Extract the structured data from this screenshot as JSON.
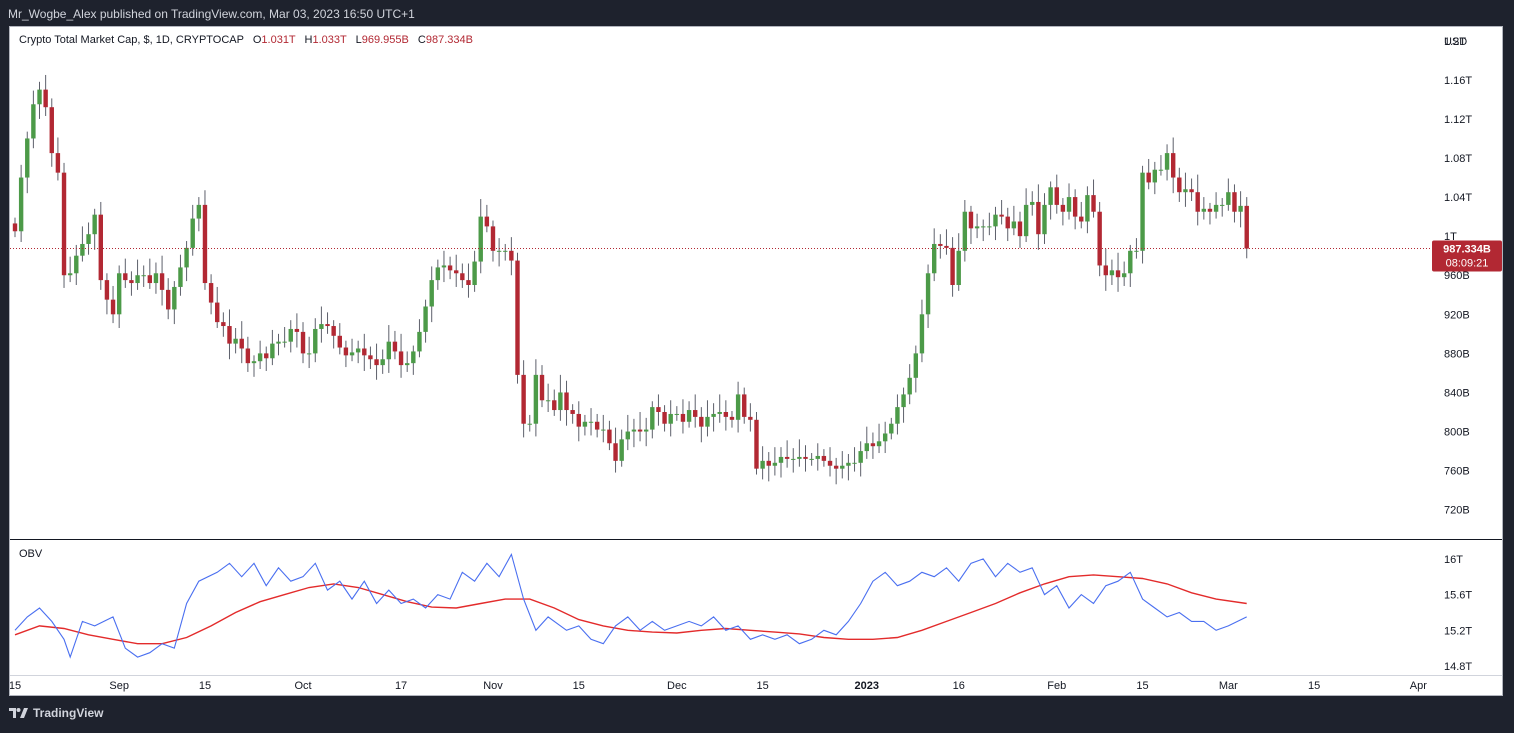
{
  "header": {
    "publisher_line": "Mr_Wogbe_Alex published on TradingView.com, Mar 03, 2023 16:50 UTC+1"
  },
  "legend": {
    "symbol": "Crypto Total Market Cap, $, 1D, CRYPTOCAP",
    "open_key": "O",
    "open": "1.031T",
    "high_key": "H",
    "high": "1.033T",
    "low_key": "L",
    "low": "969.955B",
    "close_key": "C",
    "close": "987.334B"
  },
  "price_tag": {
    "price": "987.334B",
    "countdown": "08:09:21",
    "color": "#b22833"
  },
  "footer": {
    "brand": "TradingView",
    "logo_icon": "tradingview-logo-icon"
  },
  "colors": {
    "up": "#4c9a48",
    "down": "#b22833",
    "obv_line": "#4a6ff0",
    "obv_ma": "#e32b2b"
  },
  "chart_data": [
    {
      "type": "candlestick",
      "title": "Crypto Total Market Cap, $, 1D, CRYPTOCAP",
      "currency_label": "USD",
      "ylim": [
        690,
        1210
      ],
      "y_ticks": [
        {
          "v": 1200,
          "label": "1.2T"
        },
        {
          "v": 1160,
          "label": "1.16T"
        },
        {
          "v": 1120,
          "label": "1.12T"
        },
        {
          "v": 1080,
          "label": "1.08T"
        },
        {
          "v": 1040,
          "label": "1.04T"
        },
        {
          "v": 1000,
          "label": "1T"
        },
        {
          "v": 960,
          "label": "960B"
        },
        {
          "v": 920,
          "label": "920B"
        },
        {
          "v": 880,
          "label": "880B"
        },
        {
          "v": 840,
          "label": "840B"
        },
        {
          "v": 800,
          "label": "800B"
        },
        {
          "v": 760,
          "label": "760B"
        },
        {
          "v": 720,
          "label": "720B"
        }
      ],
      "x_ticks": [
        {
          "day": 0,
          "label": "15",
          "bold": false
        },
        {
          "day": 17,
          "label": "Sep",
          "bold": false
        },
        {
          "day": 31,
          "label": "15",
          "bold": false
        },
        {
          "day": 47,
          "label": "Oct",
          "bold": false
        },
        {
          "day": 63,
          "label": "17",
          "bold": false
        },
        {
          "day": 78,
          "label": "Nov",
          "bold": false
        },
        {
          "day": 92,
          "label": "15",
          "bold": false
        },
        {
          "day": 108,
          "label": "Dec",
          "bold": false
        },
        {
          "day": 122,
          "label": "15",
          "bold": false
        },
        {
          "day": 139,
          "label": "2023",
          "bold": true
        },
        {
          "day": 154,
          "label": "16",
          "bold": false
        },
        {
          "day": 170,
          "label": "Feb",
          "bold": false
        },
        {
          "day": 184,
          "label": "15",
          "bold": false
        },
        {
          "day": 198,
          "label": "Mar",
          "bold": false
        },
        {
          "day": 212,
          "label": "15",
          "bold": false
        },
        {
          "day": 229,
          "label": "Apr",
          "bold": false
        }
      ],
      "last_price": 987.334,
      "closes": [
        1005,
        1060,
        1100,
        1135,
        1150,
        1132,
        1085,
        1065,
        960,
        962,
        980,
        992,
        1002,
        1022,
        955,
        935,
        920,
        962,
        955,
        952,
        960,
        960,
        952,
        962,
        945,
        925,
        948,
        968,
        988,
        1018,
        1032,
        952,
        932,
        912,
        908,
        890,
        895,
        885,
        870,
        872,
        880,
        875,
        890,
        892,
        892,
        905,
        902,
        880,
        880,
        905,
        910,
        908,
        898,
        886,
        878,
        881,
        885,
        878,
        874,
        868,
        874,
        892,
        882,
        868,
        870,
        882,
        902,
        928,
        955,
        968,
        970,
        965,
        962,
        955,
        950,
        974,
        1020,
        1010,
        985,
        985,
        985,
        975,
        858,
        808,
        808,
        858,
        832,
        832,
        822,
        840,
        822,
        818,
        805,
        810,
        810,
        802,
        802,
        788,
        770,
        792,
        800,
        802,
        800,
        802,
        825,
        820,
        808,
        818,
        818,
        810,
        822,
        815,
        805,
        815,
        818,
        820,
        815,
        812,
        838,
        815,
        812,
        762,
        770,
        765,
        768,
        774,
        772,
        772,
        774,
        772,
        772,
        775,
        770,
        765,
        762,
        765,
        768,
        768,
        780,
        788,
        785,
        790,
        798,
        808,
        825,
        838,
        855,
        880,
        920,
        962,
        992,
        990,
        988,
        950,
        985,
        1025,
        1008,
        1010,
        1010,
        1010,
        1022,
        1020,
        1008,
        1015,
        1000,
        1032,
        1035,
        1002,
        1032,
        1050,
        1032,
        1025,
        1040,
        1020,
        1015,
        1042,
        1025,
        970,
        960,
        965,
        958,
        962,
        985,
        985,
        1065,
        1055,
        1068,
        1068,
        1085,
        1060,
        1045,
        1048,
        1045,
        1025,
        1028,
        1025,
        1032,
        1032,
        1045,
        1025,
        1031,
        987.334
      ],
      "obv": {
        "ylim": [
          14.7,
          16.2
        ],
        "y_ticks": [
          {
            "v": 16.0,
            "label": "16T"
          },
          {
            "v": 15.6,
            "label": "15.6T"
          },
          {
            "v": 15.2,
            "label": "15.2T"
          },
          {
            "v": 14.8,
            "label": "14.8T"
          }
        ],
        "series": [
          {
            "name": "OBV",
            "x": [
              0,
              2,
              4,
              6,
              8,
              9,
              11,
              13,
              16,
              18,
              20,
              22,
              24,
              26,
              28,
              30,
              33,
              35,
              37,
              39,
              41,
              43,
              45,
              47,
              49,
              51,
              53,
              55,
              57,
              59,
              61,
              63,
              65,
              67,
              69,
              71,
              73,
              75,
              77,
              79,
              81,
              83,
              85,
              87,
              90,
              92,
              94,
              96,
              98,
              100,
              102,
              104,
              106,
              108,
              110,
              112,
              114,
              116,
              118,
              120,
              122,
              124,
              126,
              128,
              130,
              132,
              134,
              136,
              138,
              140,
              142,
              144,
              146,
              148,
              150,
              152,
              154,
              156,
              158,
              160,
              162,
              164,
              166,
              168,
              170,
              172,
              174,
              176,
              178,
              180,
              182,
              184,
              186,
              188,
              190,
              192,
              194,
              196,
              198,
              201
            ],
            "values": [
              15.2,
              15.35,
              15.45,
              15.3,
              15.1,
              14.9,
              15.3,
              15.25,
              15.35,
              15.0,
              14.9,
              14.95,
              15.05,
              15.0,
              15.5,
              15.75,
              15.85,
              15.95,
              15.8,
              15.95,
              15.7,
              15.9,
              15.75,
              15.8,
              15.95,
              15.65,
              15.75,
              15.55,
              15.75,
              15.5,
              15.65,
              15.5,
              15.55,
              15.45,
              15.6,
              15.55,
              15.85,
              15.75,
              15.95,
              15.8,
              16.05,
              15.55,
              15.2,
              15.35,
              15.2,
              15.25,
              15.1,
              15.05,
              15.25,
              15.35,
              15.2,
              15.3,
              15.2,
              15.25,
              15.3,
              15.25,
              15.35,
              15.2,
              15.25,
              15.1,
              15.15,
              15.1,
              15.15,
              15.05,
              15.1,
              15.2,
              15.15,
              15.3,
              15.5,
              15.75,
              15.85,
              15.7,
              15.75,
              15.85,
              15.8,
              15.9,
              15.75,
              15.95,
              16.0,
              15.8,
              15.95,
              15.85,
              15.9,
              15.6,
              15.7,
              15.45,
              15.6,
              15.5,
              15.7,
              15.75,
              15.85,
              15.55,
              15.45,
              15.35,
              15.4,
              15.3,
              15.3,
              15.2,
              15.25,
              15.35
            ]
          },
          {
            "name": "OBV MA",
            "x": [
              0,
              4,
              8,
              12,
              16,
              20,
              24,
              28,
              32,
              36,
              40,
              44,
              48,
              52,
              56,
              60,
              64,
              68,
              72,
              76,
              80,
              84,
              88,
              92,
              96,
              100,
              104,
              108,
              112,
              116,
              120,
              124,
              128,
              132,
              136,
              140,
              144,
              148,
              152,
              156,
              160,
              164,
              168,
              172,
              176,
              180,
              184,
              188,
              192,
              196,
              201
            ],
            "values": [
              15.15,
              15.25,
              15.22,
              15.15,
              15.1,
              15.05,
              15.05,
              15.12,
              15.25,
              15.4,
              15.52,
              15.6,
              15.68,
              15.72,
              15.68,
              15.6,
              15.52,
              15.46,
              15.45,
              15.5,
              15.55,
              15.55,
              15.45,
              15.32,
              15.25,
              15.2,
              15.18,
              15.17,
              15.2,
              15.22,
              15.2,
              15.18,
              15.16,
              15.12,
              15.1,
              15.1,
              15.12,
              15.2,
              15.3,
              15.4,
              15.5,
              15.62,
              15.72,
              15.8,
              15.82,
              15.8,
              15.78,
              15.72,
              15.62,
              15.55,
              15.5
            ]
          }
        ]
      }
    }
  ]
}
